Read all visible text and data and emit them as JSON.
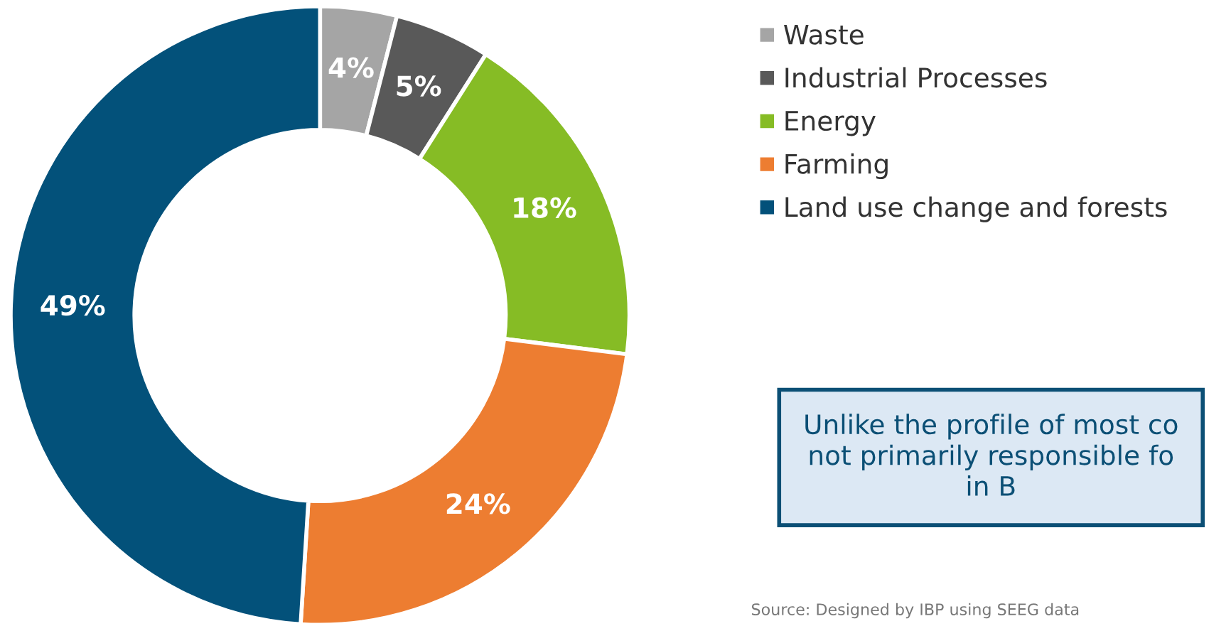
{
  "chart_data": {
    "type": "donut",
    "categories": [
      "Waste",
      "Industrial Processes",
      "Energy",
      "Farming",
      "Land use change and forests"
    ],
    "values": [
      4,
      5,
      18,
      24,
      49
    ],
    "colors": [
      "#a5a5a5",
      "#595959",
      "#86bc25",
      "#ed7d31",
      "#03517a"
    ],
    "value_labels": [
      "4%",
      "5%",
      "18%",
      "24%",
      "49%"
    ],
    "legend": "right",
    "annotations": [
      "Unlike the profile of most co\nnot primarily responsible fo\nin B",
      "Source: Designed by IBP using SEEG data"
    ]
  }
}
